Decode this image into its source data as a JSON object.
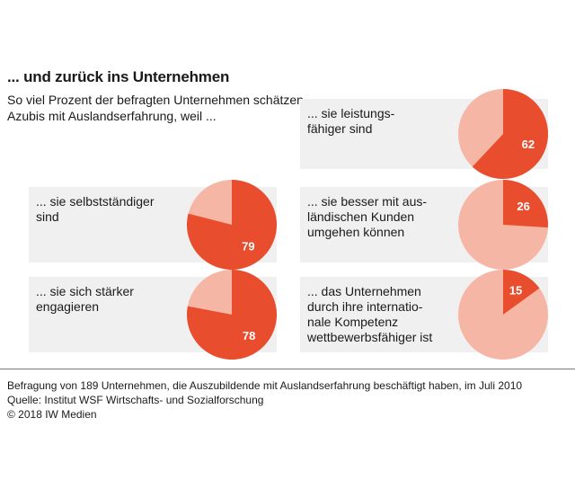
{
  "title": "... und zurück ins Unternehmen",
  "subtitle": "So viel Prozent der befragten Unternehmen schätzen Azubis mit Auslandserfahrung, weil ...",
  "colors": {
    "highlight": "#e84e2e",
    "rest": "#f6b6a6",
    "card": "#f0f0f0"
  },
  "chart_data": {
    "type": "pie",
    "unit": "%",
    "items": [
      {
        "label": "... sie leistungs-\nfähiger sind",
        "value": 62
      },
      {
        "label": "... sie selbstständiger\nsind",
        "value": 79
      },
      {
        "label": "... sie besser mit aus-\nländischen Kunden\numgehen können",
        "value": 26
      },
      {
        "label": "... sie sich stärker\nengagieren",
        "value": 78
      },
      {
        "label": "... das Unternehmen\ndurch ihre internatio-\nnale Kompetenz\nwettbewerbsfähiger ist",
        "value": 15
      }
    ]
  },
  "footer": {
    "line1": "Befragung von 189 Unternehmen, die Auszubildende mit Auslandserfahrung beschäftigt haben, im Juli 2010",
    "line2": "Quelle: Institut WSF Wirtschafts- und Sozialforschung",
    "line3": "© 2018 IW Medien"
  }
}
